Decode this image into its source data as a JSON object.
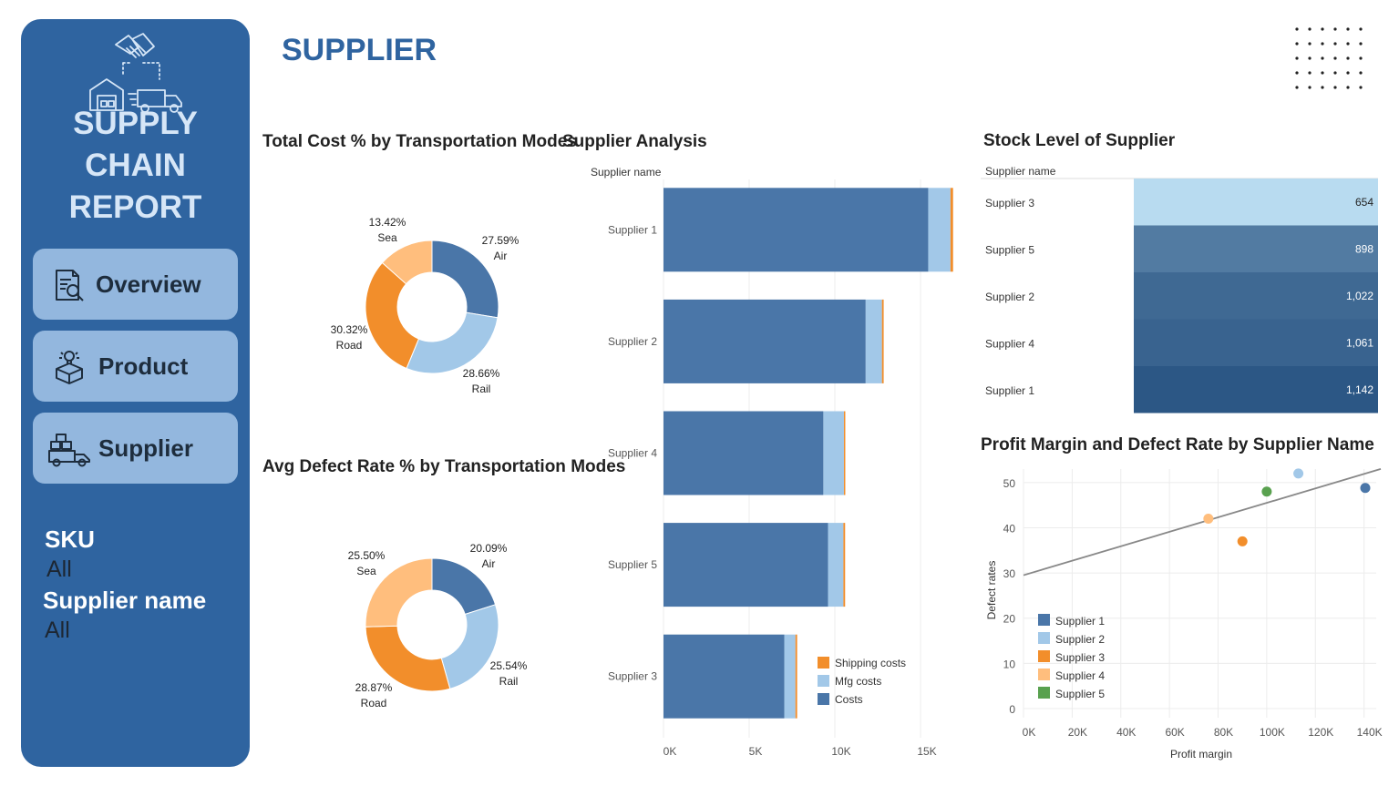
{
  "sidebar": {
    "title_line1": "SUPPLY CHAIN",
    "title_line2": "REPORT",
    "nav": [
      {
        "label": "Overview",
        "icon": "report-search-icon"
      },
      {
        "label": "Product",
        "icon": "product-box-icon"
      },
      {
        "label": "Supplier",
        "icon": "delivery-truck-icon"
      }
    ],
    "filters": [
      {
        "label": "SKU",
        "value": "All"
      },
      {
        "label": "Supplier name",
        "value": "All"
      }
    ]
  },
  "page_title": "SUPPLIER",
  "colors": {
    "sidebar": "#2f64a0",
    "nav_button": "#93b7de",
    "air": "#4a76a8",
    "rail": "#a2c8e8",
    "road": "#f28e2b",
    "sea": "#ffbe7d",
    "costs": "#4a76a8",
    "mfg": "#a2c8e8",
    "shipping": "#f28e2b"
  },
  "chart_data": [
    {
      "id": "cost-donut",
      "type": "pie",
      "title": "Total Cost % by Transportation Modes",
      "slices": [
        {
          "label": "Air",
          "value": 27.59,
          "text": "27.59%",
          "color": "#4a76a8"
        },
        {
          "label": "Rail",
          "value": 28.66,
          "text": "28.66%",
          "color": "#a2c8e8"
        },
        {
          "label": "Road",
          "value": 30.32,
          "text": "30.32%",
          "color": "#f28e2b"
        },
        {
          "label": "Sea",
          "value": 13.42,
          "text": "13.42%",
          "color": "#ffbe7d"
        }
      ]
    },
    {
      "id": "defect-donut",
      "type": "pie",
      "title": "Avg Defect Rate % by Transportation Modes",
      "slices": [
        {
          "label": "Air",
          "value": 20.09,
          "text": "20.09%",
          "color": "#4a76a8"
        },
        {
          "label": "Rail",
          "value": 25.54,
          "text": "25.54%",
          "color": "#a2c8e8"
        },
        {
          "label": "Road",
          "value": 28.87,
          "text": "28.87%",
          "color": "#f28e2b"
        },
        {
          "label": "Sea",
          "value": 25.5,
          "text": "25.50%",
          "color": "#ffbe7d"
        }
      ]
    },
    {
      "id": "supplier-bars",
      "type": "bar",
      "orientation": "horizontal",
      "stacked": true,
      "title": "Supplier Analysis",
      "ylabel": "Supplier name",
      "categories": [
        "Supplier 1",
        "Supplier 2",
        "Supplier 4",
        "Supplier 5",
        "Supplier 3"
      ],
      "series": [
        {
          "name": "Costs",
          "values": [
            15450,
            11800,
            9330,
            9600,
            7050
          ],
          "color": "#4a76a8"
        },
        {
          "name": "Mfg costs",
          "values": [
            1300,
            950,
            1200,
            900,
            650
          ],
          "color": "#a2c8e8"
        },
        {
          "name": "Shipping costs",
          "values": [
            150,
            100,
            80,
            100,
            100
          ],
          "color": "#f28e2b"
        }
      ],
      "legend_order": [
        "Shipping costs",
        "Mfg costs",
        "Costs"
      ],
      "xlim": [
        0,
        17500
      ],
      "xticks": [
        0,
        5000,
        10000,
        15000
      ],
      "xtick_labels": [
        "0K",
        "5K",
        "10K",
        "15K"
      ],
      "legend": "bottom-right",
      "grid": true
    },
    {
      "id": "stock-table",
      "type": "table",
      "title": "Stock Level of Supplier",
      "header": "Supplier name",
      "rows": [
        {
          "name": "Supplier 3",
          "value": 654,
          "text": "654"
        },
        {
          "name": "Supplier 5",
          "value": 898,
          "text": "898"
        },
        {
          "name": "Supplier 2",
          "value": 1022,
          "text": "1,022"
        },
        {
          "name": "Supplier 4",
          "value": 1061,
          "text": "1,061"
        },
        {
          "name": "Supplier 1",
          "value": 1142,
          "text": "1,142"
        }
      ]
    },
    {
      "id": "profit-scatter",
      "type": "scatter",
      "title": "Profit Margin and Defect Rate by Supplier Name",
      "xlabel": "Profit margin",
      "ylabel": "Defect rates",
      "xlim": [
        0,
        145000
      ],
      "ylim": [
        0,
        55
      ],
      "xticks": [
        0,
        20000,
        40000,
        60000,
        80000,
        100000,
        120000,
        140000
      ],
      "xtick_labels": [
        "0K",
        "20K",
        "40K",
        "60K",
        "80K",
        "100K",
        "120K",
        "140K"
      ],
      "yticks": [
        0,
        10,
        20,
        30,
        40,
        50
      ],
      "ytick_labels": [
        "0",
        "10",
        "20",
        "30",
        "40",
        "50"
      ],
      "series": [
        {
          "name": "Supplier 1",
          "color": "#4a76a8",
          "points": [
            [
              140500,
              48.8
            ]
          ]
        },
        {
          "name": "Supplier 2",
          "color": "#a2c8e8",
          "points": [
            [
              113000,
              52
            ]
          ]
        },
        {
          "name": "Supplier 3",
          "color": "#f28e2b",
          "points": [
            [
              90000,
              37
            ]
          ]
        },
        {
          "name": "Supplier 4",
          "color": "#ffbe7d",
          "points": [
            [
              76000,
              42
            ]
          ]
        },
        {
          "name": "Supplier 5",
          "color": "#59a14f",
          "points": [
            [
              100000,
              48
            ]
          ]
        }
      ],
      "trend_line": {
        "x": [
          0,
          145000
        ],
        "y": [
          29.5,
          52.6
        ]
      },
      "legend": "bottom-left",
      "grid": true
    }
  ]
}
